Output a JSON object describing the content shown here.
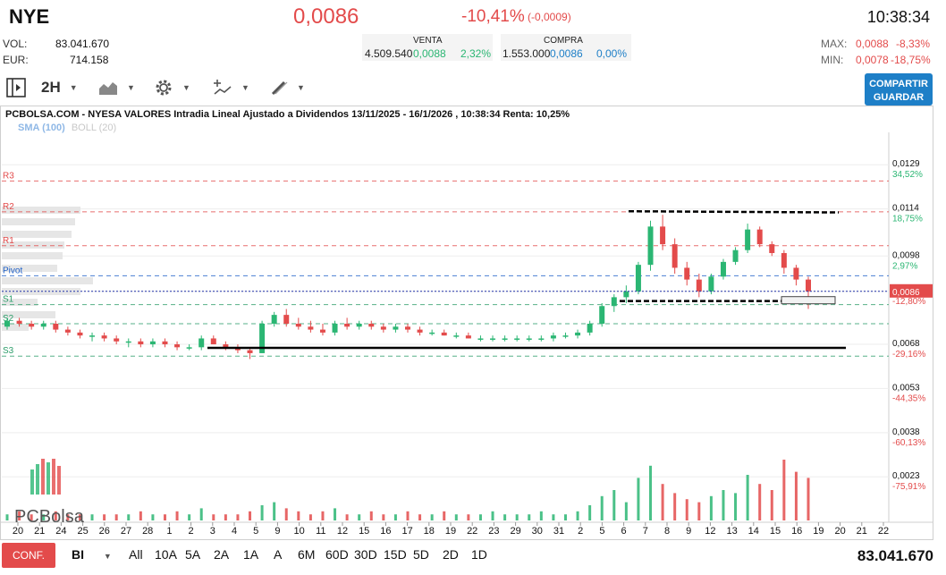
{
  "header": {
    "ticker": "NYE",
    "price": "0,0086",
    "change_pct": "-10,41%",
    "change_abs": "(-0,0009)",
    "time": "10:38:34",
    "vol_label": "VOL:",
    "vol_value": "83.041.670",
    "eur_label": "EUR:",
    "eur_value": "714.158",
    "venta": {
      "label": "VENTA",
      "qty": "4.509.540",
      "price": "0,0088",
      "pct": "2,32%"
    },
    "compra": {
      "label": "COMPRA",
      "qty": "1.553.000",
      "price": "0,0086",
      "pct": "0,00%"
    },
    "max_label": "MAX:",
    "max_price": "0,0088",
    "max_pct": "-8,33%",
    "min_label": "MIN:",
    "min_price": "0,0078",
    "min_pct": "-18,75%"
  },
  "toolbar": {
    "interval": "2H",
    "share_label_1": "COMPARTIR",
    "share_label_2": "GUARDAR",
    "icons": [
      "panel-toggle-icon",
      "chart-type-icon",
      "gear-icon",
      "indicators-icon",
      "draw-tools-icon"
    ]
  },
  "colors": {
    "up": "#2bb673",
    "down": "#e34b4b",
    "accent": "#1e7fc7",
    "resistance": "#e34b4b",
    "support": "#2e9e6b",
    "pivot": "#1e5fc7"
  },
  "chart_data": {
    "type": "candlestick",
    "title": "PCBOLSA.COM - NYESA VALORES Intradia Lineal Ajustado a Dividendos 13/11/2025 - 16/1/2026 , 10:38:34 Renta: 10,25%",
    "legend": [
      {
        "name": "SMA (100)",
        "color": "#8fb8e6"
      },
      {
        "name": "BOLL (20)",
        "color": "#c8c8c8"
      }
    ],
    "y_ticks": [
      {
        "value": "0,0129",
        "pct": "34,52%"
      },
      {
        "value": "0,0114",
        "pct": "18,75%"
      },
      {
        "value": "0,0098",
        "pct": "2,97%"
      },
      {
        "value": "0,0086",
        "pct": "-12,80%"
      },
      {
        "value": "0,0068",
        "pct": "-29,16%"
      },
      {
        "value": "0,0053",
        "pct": "-44,35%"
      },
      {
        "value": "0,0038",
        "pct": "-60,13%"
      },
      {
        "value": "0,0023",
        "pct": "-75,91%"
      }
    ],
    "current_price_label": "0,0086",
    "ylim": [
      0.001,
      0.014
    ],
    "levels": [
      {
        "name": "R3",
        "value": 0.01235,
        "kind": "resistance"
      },
      {
        "name": "R2",
        "value": 0.0113,
        "kind": "resistance"
      },
      {
        "name": "R1",
        "value": 0.01015,
        "kind": "resistance"
      },
      {
        "name": "Pivot",
        "value": 0.00913,
        "kind": "pivot"
      },
      {
        "name": "S1",
        "value": 0.00815,
        "kind": "support"
      },
      {
        "name": "S2",
        "value": 0.0075,
        "kind": "support"
      },
      {
        "name": "S3",
        "value": 0.0064,
        "kind": "support"
      }
    ],
    "x_ticks": [
      "20",
      "21",
      "24",
      "25",
      "26",
      "27",
      "28",
      "1",
      "2",
      "3",
      "4",
      "5",
      "9",
      "10",
      "11",
      "12",
      "15",
      "16",
      "17",
      "18",
      "19",
      "22",
      "23",
      "29",
      "30",
      "31",
      "2",
      "5",
      "6",
      "7",
      "8",
      "9",
      "12",
      "13",
      "14",
      "15",
      "16",
      "19",
      "20",
      "21",
      "22"
    ],
    "candles": [
      [
        0.0074,
        0.0077,
        0.0073,
        0.0076
      ],
      [
        0.0076,
        0.0077,
        0.0074,
        0.0075
      ],
      [
        0.0075,
        0.0076,
        0.0073,
        0.0074
      ],
      [
        0.0074,
        0.0076,
        0.0073,
        0.0075
      ],
      [
        0.0075,
        0.0076,
        0.0072,
        0.0073
      ],
      [
        0.0073,
        0.0074,
        0.0071,
        0.0072
      ],
      [
        0.0072,
        0.0073,
        0.007,
        0.0071
      ],
      [
        0.0071,
        0.0072,
        0.0069,
        0.0071
      ],
      [
        0.0071,
        0.0072,
        0.0069,
        0.007
      ],
      [
        0.007,
        0.0071,
        0.0068,
        0.0069
      ],
      [
        0.0069,
        0.007,
        0.0067,
        0.0069
      ],
      [
        0.0069,
        0.007,
        0.0067,
        0.0068
      ],
      [
        0.0068,
        0.007,
        0.0067,
        0.0069
      ],
      [
        0.0069,
        0.007,
        0.0067,
        0.0068
      ],
      [
        0.0068,
        0.0069,
        0.0066,
        0.0067
      ],
      [
        0.0067,
        0.0068,
        0.0066,
        0.0067
      ],
      [
        0.0067,
        0.0071,
        0.0066,
        0.007
      ],
      [
        0.007,
        0.0071,
        0.0068,
        0.0068
      ],
      [
        0.0068,
        0.0069,
        0.0066,
        0.0067
      ],
      [
        0.0067,
        0.0068,
        0.0065,
        0.0066
      ],
      [
        0.0066,
        0.0067,
        0.0063,
        0.0065
      ],
      [
        0.0065,
        0.0076,
        0.0065,
        0.0075
      ],
      [
        0.0075,
        0.0079,
        0.0074,
        0.0078
      ],
      [
        0.0078,
        0.008,
        0.0074,
        0.0075
      ],
      [
        0.0075,
        0.0077,
        0.0073,
        0.0074
      ],
      [
        0.0074,
        0.0076,
        0.0072,
        0.0073
      ],
      [
        0.0073,
        0.0075,
        0.0071,
        0.0072
      ],
      [
        0.0072,
        0.0076,
        0.0071,
        0.0075
      ],
      [
        0.0075,
        0.0077,
        0.0073,
        0.0074
      ],
      [
        0.0074,
        0.0076,
        0.0073,
        0.0075
      ],
      [
        0.0075,
        0.0076,
        0.0073,
        0.0074
      ],
      [
        0.0074,
        0.0075,
        0.0072,
        0.0073
      ],
      [
        0.0073,
        0.0075,
        0.0072,
        0.0074
      ],
      [
        0.0074,
        0.0075,
        0.0072,
        0.0073
      ],
      [
        0.0073,
        0.0074,
        0.0071,
        0.0072
      ],
      [
        0.0072,
        0.0073,
        0.0071,
        0.0072
      ],
      [
        0.0072,
        0.0073,
        0.0071,
        0.0071
      ],
      [
        0.0071,
        0.0072,
        0.007,
        0.0071
      ],
      [
        0.0071,
        0.0072,
        0.007,
        0.007
      ],
      [
        0.007,
        0.0071,
        0.0069,
        0.007
      ],
      [
        0.007,
        0.0071,
        0.0069,
        0.007
      ],
      [
        0.007,
        0.0071,
        0.0069,
        0.007
      ],
      [
        0.007,
        0.0071,
        0.0069,
        0.007
      ],
      [
        0.007,
        0.0071,
        0.0069,
        0.007
      ],
      [
        0.007,
        0.0071,
        0.0069,
        0.007
      ],
      [
        0.007,
        0.0072,
        0.0069,
        0.0071
      ],
      [
        0.0071,
        0.0072,
        0.007,
        0.0071
      ],
      [
        0.0071,
        0.0073,
        0.007,
        0.0072
      ],
      [
        0.0072,
        0.0076,
        0.0071,
        0.0075
      ],
      [
        0.0075,
        0.0082,
        0.0074,
        0.0081
      ],
      [
        0.0081,
        0.0085,
        0.0079,
        0.0084
      ],
      [
        0.0084,
        0.0088,
        0.0082,
        0.0086
      ],
      [
        0.0086,
        0.0096,
        0.0085,
        0.0095
      ],
      [
        0.0095,
        0.011,
        0.0093,
        0.0108
      ],
      [
        0.0108,
        0.0112,
        0.01,
        0.0102
      ],
      [
        0.0102,
        0.0104,
        0.0092,
        0.0094
      ],
      [
        0.0094,
        0.0096,
        0.0088,
        0.009
      ],
      [
        0.009,
        0.0092,
        0.0084,
        0.0086
      ],
      [
        0.0086,
        0.0092,
        0.0085,
        0.0091
      ],
      [
        0.0091,
        0.0097,
        0.009,
        0.0096
      ],
      [
        0.0096,
        0.0101,
        0.0095,
        0.01
      ],
      [
        0.01,
        0.0109,
        0.0099,
        0.0107
      ],
      [
        0.0107,
        0.0108,
        0.0101,
        0.0102
      ],
      [
        0.0102,
        0.0103,
        0.0098,
        0.0099
      ],
      [
        0.0099,
        0.01,
        0.0092,
        0.0094
      ],
      [
        0.0094,
        0.0095,
        0.0088,
        0.009
      ],
      [
        0.009,
        0.0091,
        0.008,
        0.0086
      ]
    ],
    "volumes": [
      2,
      3,
      2,
      2,
      3,
      2,
      2,
      2,
      2,
      2,
      2,
      3,
      2,
      2,
      3,
      2,
      4,
      2,
      2,
      2,
      3,
      5,
      6,
      4,
      3,
      2,
      3,
      4,
      2,
      2,
      3,
      2,
      2,
      3,
      2,
      2,
      3,
      2,
      2,
      2,
      3,
      2,
      2,
      2,
      3,
      2,
      2,
      3,
      5,
      8,
      10,
      6,
      14,
      18,
      12,
      9,
      7,
      6,
      8,
      10,
      9,
      15,
      12,
      10,
      20,
      16,
      14
    ]
  },
  "watermark": "PCBolsa",
  "bottom": {
    "conf_label": "CONF.",
    "period_type": "BI",
    "periods": [
      "All",
      "10A",
      "5A",
      "2A",
      "1A",
      "A",
      "6M",
      "60D",
      "30D",
      "15D",
      "5D",
      "2D",
      "1D"
    ],
    "volume_total": "83.041.670"
  }
}
